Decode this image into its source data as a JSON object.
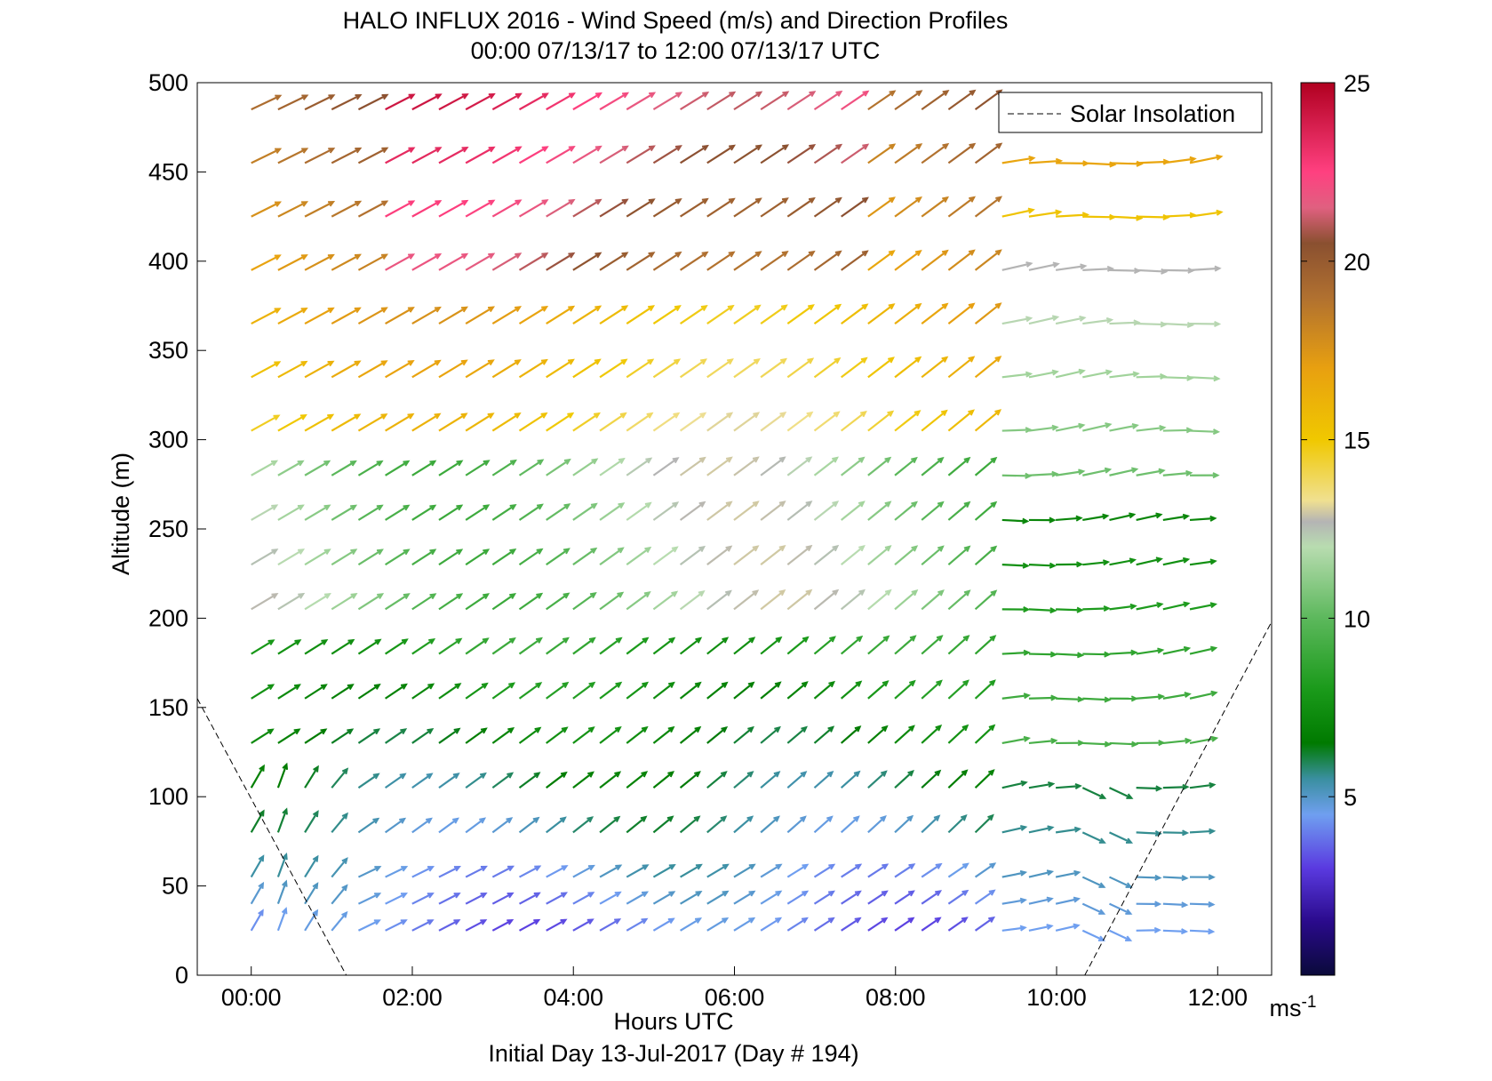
{
  "chart_data": {
    "type": "quiver",
    "title": "HALO INFLUX 2016 - Wind Speed (m/s) and Direction Profiles",
    "subtitle": "00:00 07/13/17 to 12:00 07/13/17  UTC",
    "xlabel": "Hours UTC",
    "xlabel2": "Initial Day 13-Jul-2017 (Day # 194)",
    "ylabel": "Altitude (m)",
    "xlim": [
      -0.67,
      12.67
    ],
    "ylim": [
      0,
      500
    ],
    "xticks": [
      {
        "value": 0,
        "label": "00:00"
      },
      {
        "value": 2,
        "label": "02:00"
      },
      {
        "value": 4,
        "label": "04:00"
      },
      {
        "value": 6,
        "label": "06:00"
      },
      {
        "value": 8,
        "label": "08:00"
      },
      {
        "value": 10,
        "label": "10:00"
      },
      {
        "value": 12,
        "label": "12:00"
      }
    ],
    "yticks": [
      {
        "value": 0,
        "label": "0"
      },
      {
        "value": 50,
        "label": "50"
      },
      {
        "value": 100,
        "label": "100"
      },
      {
        "value": 150,
        "label": "150"
      },
      {
        "value": 200,
        "label": "200"
      },
      {
        "value": 250,
        "label": "250"
      },
      {
        "value": 300,
        "label": "300"
      },
      {
        "value": 350,
        "label": "350"
      },
      {
        "value": 400,
        "label": "400"
      },
      {
        "value": 450,
        "label": "450"
      },
      {
        "value": 500,
        "label": "500"
      }
    ],
    "legend": {
      "position": "top-right",
      "entries": [
        {
          "label": "Solar Insolation",
          "style": "dashed"
        }
      ]
    },
    "solar_insolation": [
      {
        "x": -0.67,
        "y": 155
      },
      {
        "x": 1.18,
        "y": 0
      },
      {
        "x": 10.35,
        "y": 0
      },
      {
        "x": 12.67,
        "y": 198
      }
    ],
    "altitudes": [
      25,
      40,
      55,
      80,
      105,
      130,
      155,
      180,
      205,
      230,
      255,
      280,
      305,
      335,
      365,
      395,
      425,
      455,
      485
    ],
    "times_start": 0,
    "times_step": 0.333,
    "times_count": 36,
    "colorbar": {
      "min": 0,
      "max": 25,
      "unit": "ms-1",
      "ticks": [
        {
          "value": 5,
          "label": "5"
        },
        {
          "value": 10,
          "label": "10"
        },
        {
          "value": 15,
          "label": "15"
        },
        {
          "value": 20,
          "label": "20"
        },
        {
          "value": 25,
          "label": "25"
        }
      ],
      "stops": [
        {
          "v": 0,
          "c": "#0a0a3a"
        },
        {
          "v": 1.5,
          "c": "#2a0a8c"
        },
        {
          "v": 3,
          "c": "#5a3ae0"
        },
        {
          "v": 4.5,
          "c": "#6f9ff0"
        },
        {
          "v": 5.5,
          "c": "#3a8fa0"
        },
        {
          "v": 6.5,
          "c": "#007a00"
        },
        {
          "v": 8,
          "c": "#1a9a1a"
        },
        {
          "v": 10,
          "c": "#5cb85c"
        },
        {
          "v": 12,
          "c": "#b8dcb0"
        },
        {
          "v": 12.7,
          "c": "#b4b4b4"
        },
        {
          "v": 13.3,
          "c": "#f0e090"
        },
        {
          "v": 15,
          "c": "#f0c800"
        },
        {
          "v": 17,
          "c": "#e8a010"
        },
        {
          "v": 19,
          "c": "#b07030"
        },
        {
          "v": 20.5,
          "c": "#8a5030"
        },
        {
          "v": 21.5,
          "c": "#e06080"
        },
        {
          "v": 22.5,
          "c": "#ff4080"
        },
        {
          "v": 25,
          "c": "#b00020"
        }
      ]
    }
  }
}
